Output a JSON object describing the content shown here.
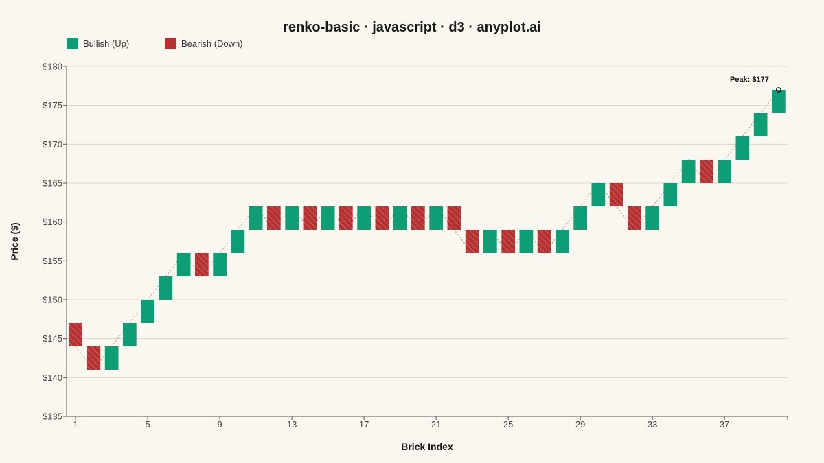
{
  "chart_data": {
    "type": "renko",
    "title": "renko-basic · javascript · d3 · anyplot.ai",
    "xlabel": "Brick Index",
    "ylabel": "Price ($)",
    "ylim": [
      135,
      180
    ],
    "y_ticks": [
      135,
      140,
      145,
      150,
      155,
      160,
      165,
      170,
      175,
      180
    ],
    "y_tick_labels": [
      "$135",
      "$140",
      "$145",
      "$150",
      "$155",
      "$160",
      "$165",
      "$170",
      "$175",
      "$180"
    ],
    "x_ticks": [
      1,
      5,
      9,
      13,
      17,
      21,
      25,
      29,
      33,
      37
    ],
    "x_tick_labels": [
      "1",
      "5",
      "9",
      "13",
      "17",
      "21",
      "25",
      "29",
      "33",
      "37"
    ],
    "brick_size": 3,
    "grid": true,
    "legend_position": "top-left",
    "legend": [
      {
        "name": "Bullish (Up)",
        "color": "#0E9E76"
      },
      {
        "name": "Bearish (Down)",
        "color": "#B53030"
      }
    ],
    "bricks": [
      {
        "index": 1,
        "direction": "down",
        "low": 144,
        "high": 147
      },
      {
        "index": 2,
        "direction": "down",
        "low": 141,
        "high": 144
      },
      {
        "index": 3,
        "direction": "up",
        "low": 141,
        "high": 144
      },
      {
        "index": 4,
        "direction": "up",
        "low": 144,
        "high": 147
      },
      {
        "index": 5,
        "direction": "up",
        "low": 147,
        "high": 150
      },
      {
        "index": 6,
        "direction": "up",
        "low": 150,
        "high": 153
      },
      {
        "index": 7,
        "direction": "up",
        "low": 153,
        "high": 156
      },
      {
        "index": 8,
        "direction": "down",
        "low": 153,
        "high": 156
      },
      {
        "index": 9,
        "direction": "up",
        "low": 153,
        "high": 156
      },
      {
        "index": 10,
        "direction": "up",
        "low": 156,
        "high": 159
      },
      {
        "index": 11,
        "direction": "up",
        "low": 159,
        "high": 162
      },
      {
        "index": 12,
        "direction": "down",
        "low": 159,
        "high": 162
      },
      {
        "index": 13,
        "direction": "up",
        "low": 159,
        "high": 162
      },
      {
        "index": 14,
        "direction": "down",
        "low": 159,
        "high": 162
      },
      {
        "index": 15,
        "direction": "up",
        "low": 159,
        "high": 162
      },
      {
        "index": 16,
        "direction": "down",
        "low": 159,
        "high": 162
      },
      {
        "index": 17,
        "direction": "up",
        "low": 159,
        "high": 162
      },
      {
        "index": 18,
        "direction": "down",
        "low": 159,
        "high": 162
      },
      {
        "index": 19,
        "direction": "up",
        "low": 159,
        "high": 162
      },
      {
        "index": 20,
        "direction": "down",
        "low": 159,
        "high": 162
      },
      {
        "index": 21,
        "direction": "up",
        "low": 159,
        "high": 162
      },
      {
        "index": 22,
        "direction": "down",
        "low": 159,
        "high": 162
      },
      {
        "index": 23,
        "direction": "down",
        "low": 156,
        "high": 159
      },
      {
        "index": 24,
        "direction": "up",
        "low": 156,
        "high": 159
      },
      {
        "index": 25,
        "direction": "down",
        "low": 156,
        "high": 159
      },
      {
        "index": 26,
        "direction": "up",
        "low": 156,
        "high": 159
      },
      {
        "index": 27,
        "direction": "down",
        "low": 156,
        "high": 159
      },
      {
        "index": 28,
        "direction": "up",
        "low": 156,
        "high": 159
      },
      {
        "index": 29,
        "direction": "up",
        "low": 159,
        "high": 162
      },
      {
        "index": 30,
        "direction": "up",
        "low": 162,
        "high": 165
      },
      {
        "index": 31,
        "direction": "down",
        "low": 162,
        "high": 165
      },
      {
        "index": 32,
        "direction": "down",
        "low": 159,
        "high": 162
      },
      {
        "index": 33,
        "direction": "up",
        "low": 159,
        "high": 162
      },
      {
        "index": 34,
        "direction": "up",
        "low": 162,
        "high": 165
      },
      {
        "index": 35,
        "direction": "up",
        "low": 165,
        "high": 168
      },
      {
        "index": 36,
        "direction": "down",
        "low": 165,
        "high": 168
      },
      {
        "index": 37,
        "direction": "up",
        "low": 165,
        "high": 168
      },
      {
        "index": 38,
        "direction": "up",
        "low": 168,
        "high": 171
      },
      {
        "index": 39,
        "direction": "up",
        "low": 171,
        "high": 174
      },
      {
        "index": 40,
        "direction": "up",
        "low": 174,
        "high": 177
      }
    ],
    "annotations": [
      {
        "text": "Peak: $177",
        "brick_index": 40,
        "value": 177
      }
    ]
  }
}
